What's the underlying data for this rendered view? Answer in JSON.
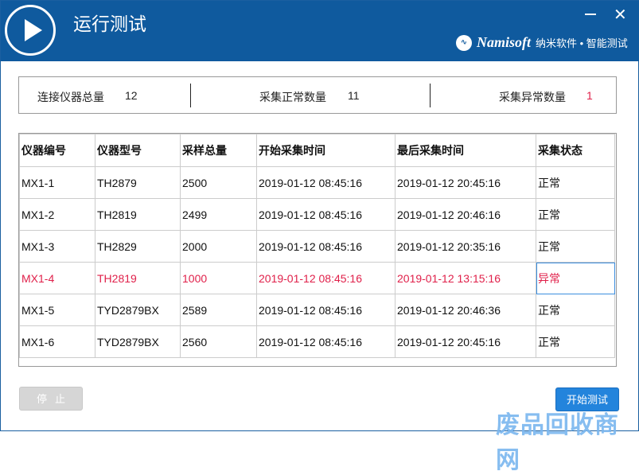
{
  "window": {
    "title": "运行测试",
    "brand_logo": "Namisoft",
    "brand_tagline": "纳米软件 • 智能测试"
  },
  "summary": {
    "connected_label": "连接仪器总量",
    "connected_value": "12",
    "normal_label": "采集正常数量",
    "normal_value": "11",
    "abnormal_label": "采集异常数量",
    "abnormal_value": "1",
    "abnormal_color": "#e0204a"
  },
  "table": {
    "headers": [
      "仪器编号",
      "仪器型号",
      "采样总量",
      "开始采集时间",
      "最后采集时间",
      "采集状态"
    ],
    "rows": [
      [
        "MX1-1",
        "TH2879",
        "2500",
        "2019-01-12 08:45:16",
        "2019-01-12 20:45:16",
        "正常"
      ],
      [
        "MX1-2",
        "TH2819",
        "2499",
        "2019-01-12 08:45:16",
        "2019-01-12 20:46:16",
        "正常"
      ],
      [
        "MX1-3",
        "TH2829",
        "2000",
        "2019-01-12 08:45:16",
        "2019-01-12 20:35:16",
        "正常"
      ],
      [
        "MX1-4",
        "TH2819",
        "1000",
        "2019-01-12 08:45:16",
        "2019-01-12 13:15:16",
        "异常"
      ],
      [
        "MX1-5",
        "TYD2879BX",
        "2589",
        "2019-01-12 08:45:16",
        "2019-01-12 20:46:36",
        "正常"
      ],
      [
        "MX1-6",
        "TYD2879BX",
        "2560",
        "2019-01-12 08:45:16",
        "2019-01-12 20:45:16",
        "正常"
      ]
    ]
  },
  "buttons": {
    "stop": "停止",
    "start": "开始测试"
  },
  "watermark": "废品回收商网"
}
